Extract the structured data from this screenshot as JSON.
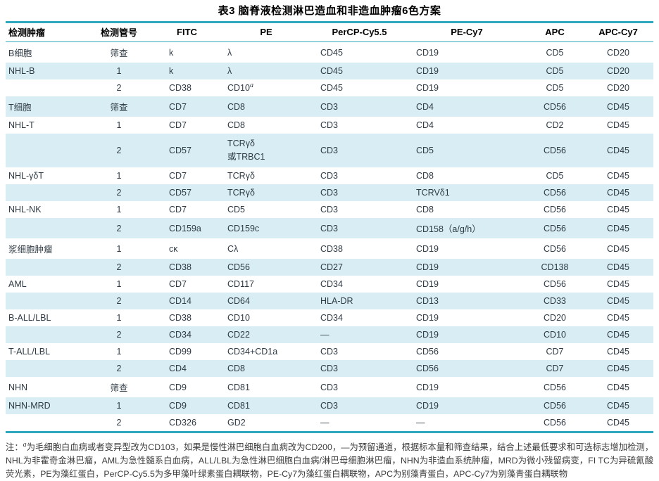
{
  "title": "表3 脑脊液检测淋巴造血和非造血肿瘤6色方案",
  "table": {
    "headers": [
      "检测肿瘤",
      "检测管号",
      "FITC",
      "PE",
      "PerCP-Cy5.5",
      "PE-Cy7",
      "APC",
      "APC-Cy7"
    ],
    "rows": [
      [
        "B细胞",
        "筛查",
        "k",
        "λ",
        "CD45",
        "CD19",
        "CD5",
        "CD20"
      ],
      [
        "NHL-B",
        "1",
        "k",
        "λ",
        "CD45",
        "CD19",
        "CD5",
        "CD20"
      ],
      [
        "",
        "2",
        "CD38",
        {
          "text": "CD10",
          "sup": "a"
        },
        "CD45",
        "CD19",
        "CD5",
        "CD20"
      ],
      [
        "T细胞",
        "筛查",
        "CD7",
        "CD8",
        "CD3",
        "CD4",
        "CD56",
        "CD45"
      ],
      [
        "NHL-T",
        "1",
        "CD7",
        "CD8",
        "CD3",
        "CD4",
        "CD2",
        "CD45"
      ],
      [
        "",
        "2",
        "CD57",
        "TCRγδ\n或TRBC1",
        "CD3",
        "CD5",
        "CD56",
        "CD45"
      ],
      [
        "NHL-γδT",
        "1",
        "CD7",
        "TCRγδ",
        "CD3",
        "CD8",
        "CD5",
        "CD45"
      ],
      [
        "",
        "2",
        "CD57",
        "TCRγδ",
        "CD3",
        "TCRVδ1",
        "CD56",
        "CD45"
      ],
      [
        "NHL-NK",
        "1",
        "CD7",
        "CD5",
        "CD3",
        "CD8",
        "CD56",
        "CD45"
      ],
      [
        "",
        "2",
        "CD159a",
        "CD159c",
        "CD3",
        "CD158（a/g/h）",
        "CD56",
        "CD45"
      ],
      [
        "浆细胞肿瘤",
        "1",
        "cκ",
        "Cλ",
        "CD38",
        "CD19",
        "CD56",
        "CD45"
      ],
      [
        "",
        "2",
        "CD38",
        "CD56",
        "CD27",
        "CD19",
        "CD138",
        "CD45"
      ],
      [
        "AML",
        "1",
        "CD7",
        "CD117",
        "CD34",
        "CD19",
        "CD56",
        "CD45"
      ],
      [
        "",
        "2",
        "CD14",
        "CD64",
        "HLA-DR",
        "CD13",
        "CD33",
        "CD45"
      ],
      [
        "B-ALL/LBL",
        "1",
        "CD38",
        "CD10",
        "CD34",
        "CD19",
        "CD20",
        "CD45"
      ],
      [
        "",
        "2",
        "CD34",
        "CD22",
        "—",
        "CD19",
        "CD10",
        "CD45"
      ],
      [
        "T-ALL/LBL",
        "1",
        "CD99",
        "CD34+CD1a",
        "CD3",
        "CD56",
        "CD7",
        "CD45"
      ],
      [
        "",
        "2",
        "CD4",
        "CD8",
        "CD3",
        "CD56",
        "CD7",
        "CD45"
      ],
      [
        "NHN",
        "筛查",
        "CD9",
        "CD81",
        "CD3",
        "CD19",
        "CD56",
        "CD45"
      ],
      [
        "NHN-MRD",
        "1",
        "CD9",
        "CD81",
        "CD3",
        "CD19",
        "CD56",
        "CD45"
      ],
      [
        "",
        "2",
        "CD326",
        "GD2",
        "—",
        "—",
        "CD56",
        "CD45"
      ]
    ]
  },
  "footnote": {
    "prefix": "注：",
    "sup": "a",
    "text": "为毛细胞白血病或者变异型改为CD103，如果是慢性淋巴细胞白血病改为CD200，—为预留通道，根据标本量和筛查结果，结合上述最低要求和可选标志增加检测，NHL为非霍奇金淋巴瘤，AML为急性髓系白血病，ALL/LBL为急性淋巴细胞白血病/淋巴母细胞淋巴瘤，NHN为非造血系统肿瘤，MRD为微小残留病变，FI TC为异硫氰酸荧光素，PE为藻红蛋白，PerCP-Cy5.5为多甲藻叶绿素蛋白耦联物，PE-Cy7为藻红蛋白耦联物，APC为别藻青蛋白，APC-Cy7为别藻青蛋白耦联物"
  },
  "colors": {
    "accent_teal": "#2fa8bd",
    "row_stripe": "#d8edf4",
    "text": "#2f3a44"
  }
}
